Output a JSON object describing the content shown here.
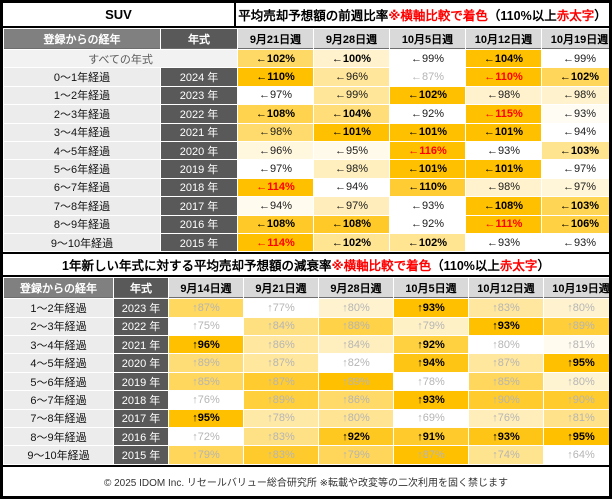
{
  "footer": {
    "text": "© 2025 IDOM Inc. リセールバリュー総合研究所 ※転載や改変等の二次利用を固く禁じます"
  },
  "colors": {
    "scale_max": "#FFC000",
    "scale_min": "#FFFFFF",
    "alert_red": "#FF0000",
    "gray_text": "#B5B5B5"
  },
  "chart_data": [
    {
      "type": "heatmap",
      "group": "SUV",
      "title": "平均売却予想額の前週比率 ※横軸比較で着色（110%以上 赤太字）",
      "title_segments": [
        {
          "text": "平均売却予想額の前週比率 ",
          "red": false
        },
        {
          "text": "※横軸比較で着色",
          "red": true
        },
        {
          "text": "（110%以上 ",
          "red": false
        },
        {
          "text": "赤太字",
          "red": true
        },
        {
          "text": "）",
          "red": false
        }
      ],
      "row_header": "登録からの経年",
      "col_header": "年式",
      "columns": [
        "9月21日週",
        "9月28日週",
        "10月5日週",
        "10月12日週",
        "10月19日週"
      ],
      "arrow": "←",
      "unit": "%",
      "colorscale": {
        "per": "row",
        "min_color": "#FFFFFF",
        "max_color": "#FFC000"
      },
      "bold_min": 100,
      "gray_max": 90,
      "rows": [
        {
          "age": "すべての年式",
          "year": null,
          "values": [
            102,
            100,
            99,
            104,
            99
          ],
          "red": []
        },
        {
          "age": "0〜1年経過",
          "year": "2024 年",
          "values": [
            110,
            96,
            87,
            110,
            102
          ],
          "red": [
            3
          ]
        },
        {
          "age": "1〜2年経過",
          "year": "2023 年",
          "values": [
            97,
            99,
            102,
            98,
            98
          ],
          "red": []
        },
        {
          "age": "2〜3年経過",
          "year": "2022 年",
          "values": [
            108,
            104,
            92,
            115,
            93
          ],
          "red": [
            3
          ]
        },
        {
          "age": "3〜4年経過",
          "year": "2021 年",
          "values": [
            98,
            101,
            101,
            101,
            94
          ],
          "red": []
        },
        {
          "age": "4〜5年経過",
          "year": "2020 年",
          "values": [
            96,
            95,
            116,
            93,
            103
          ],
          "red": [
            2
          ]
        },
        {
          "age": "5〜6年経過",
          "year": "2019 年",
          "values": [
            97,
            98,
            101,
            101,
            97
          ],
          "red": []
        },
        {
          "age": "6〜7年経過",
          "year": "2018 年",
          "values": [
            114,
            94,
            110,
            98,
            97
          ],
          "red": [
            0
          ]
        },
        {
          "age": "7〜8年経過",
          "year": "2017 年",
          "values": [
            94,
            97,
            93,
            108,
            103
          ],
          "red": []
        },
        {
          "age": "8〜9年経過",
          "year": "2016 年",
          "values": [
            108,
            108,
            92,
            111,
            106
          ],
          "red": [
            3
          ]
        },
        {
          "age": "9〜10年経過",
          "year": "2015 年",
          "values": [
            114,
            102,
            102,
            93,
            93
          ],
          "red": [
            0
          ]
        }
      ]
    },
    {
      "type": "heatmap",
      "group": null,
      "title": "1年新しい年式に対する平均売却予想額の減衰率 ※横軸比較で着色（110%以上 赤太字）",
      "title_segments": [
        {
          "text": "1年新しい年式に対する平均売却予想額の減衰率 ",
          "red": false
        },
        {
          "text": "※横軸比較で着色",
          "red": true
        },
        {
          "text": "（110%以上 ",
          "red": false
        },
        {
          "text": "赤太字",
          "red": true
        },
        {
          "text": "）",
          "red": false
        }
      ],
      "row_header": "登録からの経年",
      "col_header": "年式",
      "columns": [
        "9月14日週",
        "9月21日週",
        "9月28日週",
        "10月5日週",
        "10月12日週",
        "10月19日週"
      ],
      "arrow": "↑",
      "unit": "%",
      "colorscale": {
        "per": "row",
        "min_color": "#FFFFFF",
        "max_color": "#FFC000"
      },
      "bold_min": 91,
      "gray_max": 90,
      "rows": [
        {
          "age": "1〜2年経過",
          "year": "2023 年",
          "values": [
            87,
            77,
            80,
            93,
            83,
            80
          ],
          "red": []
        },
        {
          "age": "2〜3年経過",
          "year": "2022 年",
          "values": [
            75,
            84,
            88,
            79,
            93,
            89
          ],
          "red": []
        },
        {
          "age": "3〜4年経過",
          "year": "2021 年",
          "values": [
            96,
            86,
            84,
            92,
            80,
            81
          ],
          "red": []
        },
        {
          "age": "4〜5年経過",
          "year": "2020 年",
          "values": [
            89,
            87,
            82,
            94,
            87,
            95
          ],
          "red": []
        },
        {
          "age": "5〜6年経過",
          "year": "2019 年",
          "values": [
            85,
            87,
            89,
            78,
            85,
            80
          ],
          "red": []
        },
        {
          "age": "6〜7年経過",
          "year": "2018 年",
          "values": [
            76,
            89,
            86,
            93,
            90,
            90
          ],
          "red": []
        },
        {
          "age": "7〜8年経過",
          "year": "2017 年",
          "values": [
            95,
            78,
            80,
            69,
            76,
            81
          ],
          "red": []
        },
        {
          "age": "8〜9年経過",
          "year": "2016 年",
          "values": [
            72,
            83,
            92,
            91,
            93,
            95
          ],
          "red": []
        },
        {
          "age": "9〜10年経過",
          "year": "2015 年",
          "values": [
            79,
            83,
            79,
            87,
            74,
            64
          ],
          "red": []
        }
      ]
    }
  ]
}
